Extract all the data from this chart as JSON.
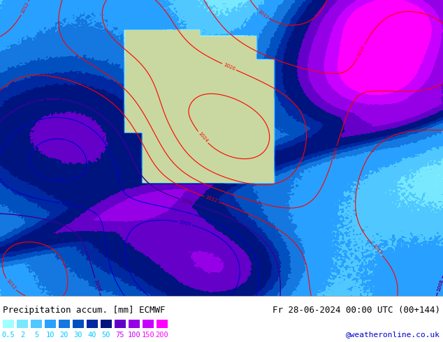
{
  "title_left": "Precipitation accum. [mm] ECMWF",
  "title_right": "Fr 28-06-2024 00:00 UTC (00+144)",
  "watermark": "@weatheronline.co.uk",
  "legend_values": [
    "0.5",
    "2",
    "5",
    "10",
    "20",
    "30",
    "40",
    "50",
    "75",
    "100",
    "150",
    "200"
  ],
  "legend_colors": [
    "#a0ffff",
    "#78e8ff",
    "#50c8ff",
    "#28a0ff",
    "#1478e0",
    "#0050c0",
    "#0028a0",
    "#001480",
    "#6400c8",
    "#9600e6",
    "#c800ff",
    "#ff00ff"
  ],
  "bg_color": "#ffffff",
  "map_bg": "#4ab4e6",
  "bottom_bar_color": "#000000",
  "label_color_left": "#000000",
  "label_color_right": "#000000",
  "watermark_color": "#0000cc",
  "legend_label_color": "#00ccff",
  "legend_label_color_high": "#ff00ff",
  "fig_width": 6.34,
  "fig_height": 4.9,
  "dpi": 100
}
